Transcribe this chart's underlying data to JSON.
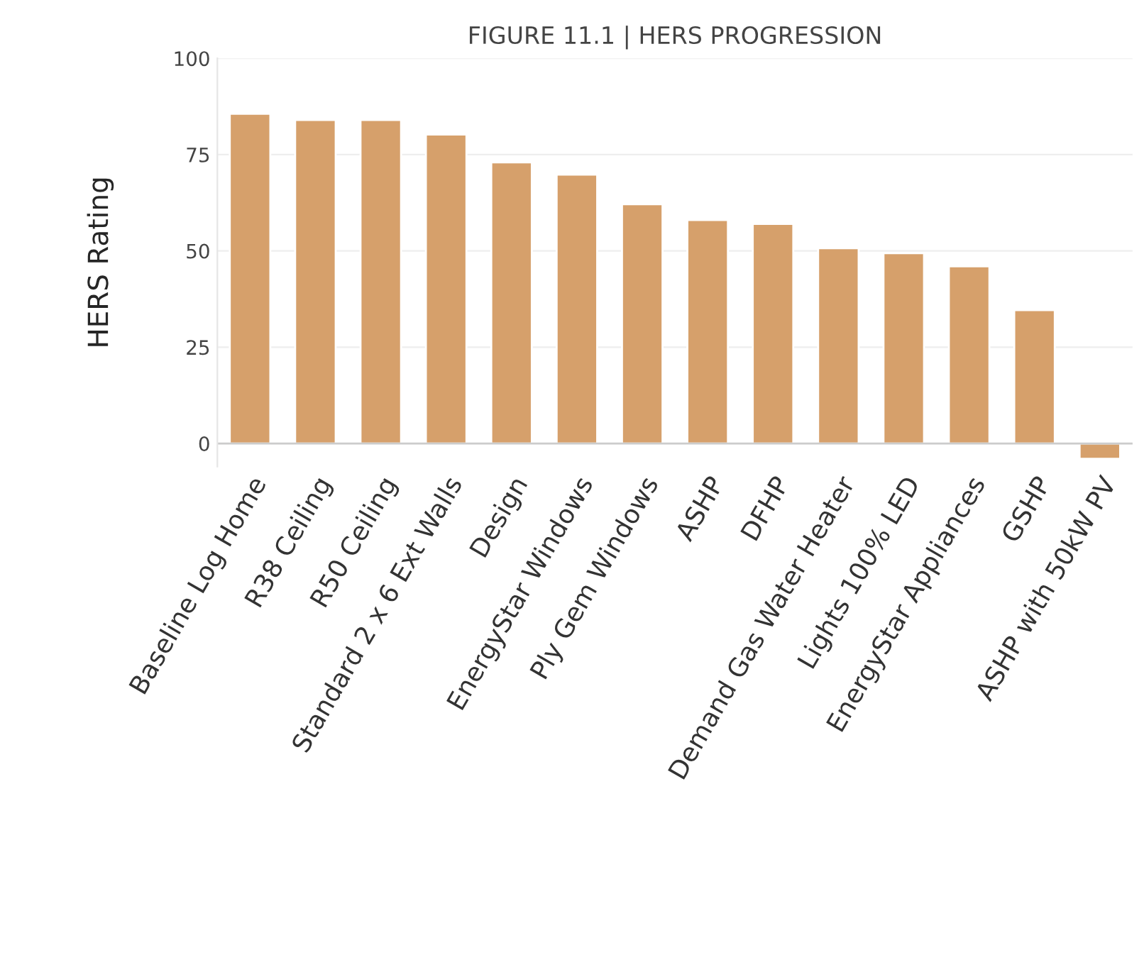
{
  "chart_data": {
    "type": "bar",
    "title": "FIGURE 11.1 | HERS PROGRESSION",
    "ylabel": "HERS Rating",
    "categories": [
      "Baseline Log Home",
      "R38 Ceiling",
      "R50 Ceiling",
      "Standard 2 x 6 Ext Walls",
      "Design",
      "EnergyStar Windows",
      "Ply Gem Windows",
      "ASHP",
      "DFHP",
      "Demand Gas Water Heater",
      "Lights 100% LED",
      "EnergyStar Appliances",
      "GSHP",
      "ASHP with 50kW PV"
    ],
    "values": [
      85.6,
      84,
      84,
      80.2,
      73,
      69.8,
      62.1,
      58,
      57,
      50.7,
      49.4,
      46,
      34.6,
      -4
    ],
    "color": "#d6a06b",
    "ylim": [
      -6,
      100
    ],
    "yticks": [
      0,
      25,
      50,
      75,
      100
    ],
    "grid": "y"
  }
}
